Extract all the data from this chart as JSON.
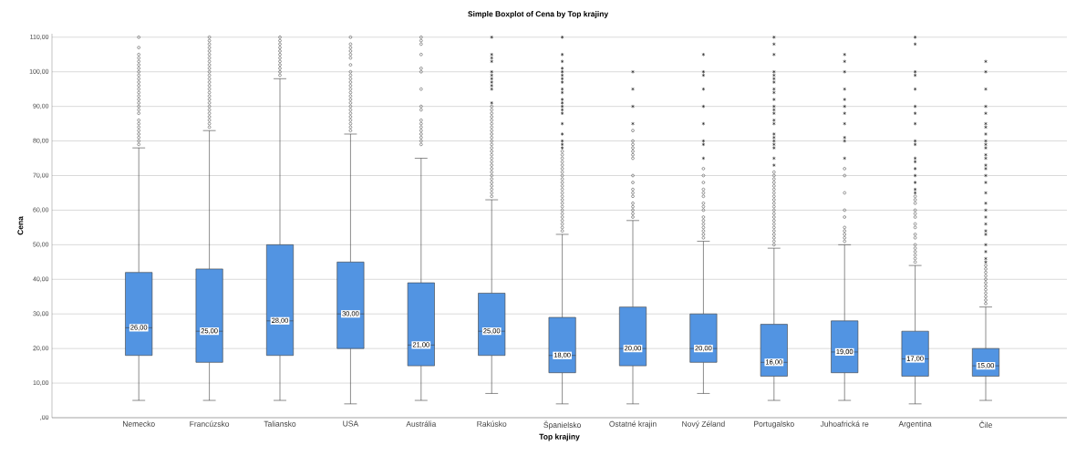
{
  "chart_data": {
    "type": "box",
    "title": "Simple Boxplot of Cena by Top krajiny",
    "xlabel": "Top krajiny",
    "ylabel": "Cena",
    "categories": [
      "Nemecko",
      "Francúzsko",
      "Taliansko",
      "USA",
      "Austrália",
      "Rakúsko",
      "Španielsko",
      "Ostatné krajin",
      "Nový Zéland",
      "Portugalsko",
      "Juhoafrická re",
      "Argentina",
      "Čile"
    ],
    "color": "#5294e2",
    "boxes": [
      {
        "low": 5,
        "q1": 18,
        "median": 26,
        "q3": 42,
        "high": 78,
        "outliers": [
          79,
          80,
          81,
          82,
          83,
          84,
          85,
          86,
          88,
          89,
          90,
          91,
          92,
          93,
          94,
          95,
          96,
          97,
          98,
          99,
          100,
          101,
          102,
          103,
          104,
          105,
          107,
          110
        ]
      },
      {
        "low": 5,
        "q1": 16,
        "median": 25,
        "q3": 43,
        "high": 83,
        "outliers": [
          84,
          85,
          86,
          87,
          88,
          89,
          90,
          91,
          92,
          93,
          94,
          95,
          96,
          97,
          98,
          99,
          100,
          101,
          102,
          103,
          104,
          105,
          106,
          107,
          108,
          109,
          110
        ]
      },
      {
        "low": 5,
        "q1": 18,
        "median": 28,
        "q3": 50,
        "high": 98,
        "outliers": [
          99,
          100,
          101,
          102,
          103,
          104,
          105,
          106,
          107,
          108,
          109,
          110
        ]
      },
      {
        "low": 4,
        "q1": 20,
        "median": 30,
        "q3": 45,
        "high": 82,
        "outliers": [
          83,
          84,
          85,
          86,
          87,
          88,
          89,
          90,
          91,
          92,
          93,
          94,
          95,
          96,
          97,
          98,
          99,
          100,
          102,
          104,
          105,
          106,
          107,
          108,
          110
        ]
      },
      {
        "low": 5,
        "q1": 15,
        "median": 21,
        "q3": 39,
        "high": 75,
        "outliers": [
          79,
          80,
          81,
          82,
          83,
          84,
          85,
          86,
          89,
          90,
          95,
          100,
          101,
          105,
          108,
          109,
          110
        ]
      },
      {
        "low": 7,
        "q1": 18,
        "median": 25,
        "q3": 36,
        "high": 63,
        "outliers": [
          64,
          65,
          66,
          67,
          68,
          69,
          70,
          71,
          72,
          73,
          74,
          75,
          76,
          77,
          78,
          79,
          80,
          81,
          82,
          83,
          84,
          85,
          86,
          87,
          88,
          89,
          90,
          91,
          95,
          96,
          97,
          98,
          99,
          100,
          103,
          104,
          105,
          110
        ]
      },
      {
        "low": 4,
        "q1": 13,
        "median": 18,
        "q3": 29,
        "high": 53,
        "outliers": [
          54,
          55,
          56,
          57,
          58,
          59,
          60,
          61,
          62,
          63,
          64,
          65,
          66,
          67,
          68,
          69,
          70,
          71,
          72,
          73,
          74,
          75,
          76,
          77,
          78,
          79,
          80,
          82,
          85,
          88,
          89,
          90,
          91,
          92,
          94,
          95,
          97,
          98,
          99,
          100,
          101,
          103,
          105,
          110
        ]
      },
      {
        "low": 4,
        "q1": 15,
        "median": 20,
        "q3": 32,
        "high": 57,
        "outliers": [
          58,
          59,
          60,
          61,
          62,
          64,
          65,
          66,
          68,
          70,
          75,
          76,
          77,
          78,
          79,
          80,
          83,
          85,
          90,
          95,
          100
        ]
      },
      {
        "low": 7,
        "q1": 16,
        "median": 20,
        "q3": 30,
        "high": 51,
        "outliers": [
          52,
          53,
          54,
          55,
          56,
          57,
          58,
          60,
          61,
          62,
          64,
          65,
          66,
          68,
          70,
          72,
          75,
          79,
          80,
          85,
          90,
          95,
          99,
          100,
          105
        ]
      },
      {
        "low": 5,
        "q1": 12,
        "median": 16,
        "q3": 27,
        "high": 49,
        "outliers": [
          50,
          51,
          52,
          53,
          54,
          55,
          56,
          57,
          58,
          59,
          60,
          61,
          62,
          63,
          64,
          65,
          66,
          67,
          68,
          69,
          70,
          71,
          73,
          75,
          78,
          79,
          80,
          81,
          82,
          85,
          86,
          88,
          89,
          90,
          92,
          94,
          95,
          97,
          98,
          99,
          100,
          105,
          108,
          110
        ]
      },
      {
        "low": 5,
        "q1": 13,
        "median": 19,
        "q3": 28,
        "high": 50,
        "outliers": [
          51,
          52,
          53,
          54,
          55,
          58,
          60,
          65,
          70,
          72,
          75,
          80,
          81,
          85,
          88,
          90,
          92,
          95,
          100,
          103,
          105
        ]
      },
      {
        "low": 4,
        "q1": 12,
        "median": 17,
        "q3": 25,
        "high": 44,
        "outliers": [
          45,
          46,
          47,
          48,
          49,
          50,
          52,
          53,
          55,
          56,
          58,
          59,
          60,
          62,
          63,
          64,
          65,
          66,
          68,
          70,
          72,
          74,
          75,
          79,
          80,
          85,
          88,
          90,
          95,
          99,
          100,
          108,
          110
        ]
      },
      {
        "low": 5,
        "q1": 12,
        "median": 15,
        "q3": 20,
        "high": 32,
        "outliers": [
          33,
          34,
          35,
          36,
          37,
          38,
          39,
          40,
          41,
          42,
          43,
          44,
          45,
          46,
          48,
          50,
          53,
          54,
          56,
          58,
          60,
          62,
          65,
          68,
          70,
          72,
          73,
          75,
          76,
          78,
          79,
          80,
          82,
          84,
          85,
          88,
          90,
          95,
          100,
          103
        ]
      }
    ],
    "value_labels": [
      "26,00",
      "25,00",
      "28,00",
      "30,00",
      "21,00",
      "25,00",
      "18,00",
      "20,00",
      "20,00",
      "16,00",
      "19,00",
      "17,00",
      "15,00"
    ],
    "ylim": [
      0,
      111
    ],
    "yticks": [
      {
        "value": 0,
        "label": ",00"
      },
      {
        "value": 10,
        "label": "10,00"
      },
      {
        "value": 20,
        "label": "20,00"
      },
      {
        "value": 30,
        "label": "30,00"
      },
      {
        "value": 40,
        "label": "40,00"
      },
      {
        "value": 50,
        "label": "50,00"
      },
      {
        "value": 60,
        "label": "60,00"
      },
      {
        "value": 70,
        "label": "70,00"
      },
      {
        "value": 80,
        "label": "80,00"
      },
      {
        "value": 90,
        "label": "90,00"
      },
      {
        "value": 100,
        "label": "100,00"
      },
      {
        "value": 110,
        "label": "110,00"
      }
    ],
    "grid": "y"
  }
}
